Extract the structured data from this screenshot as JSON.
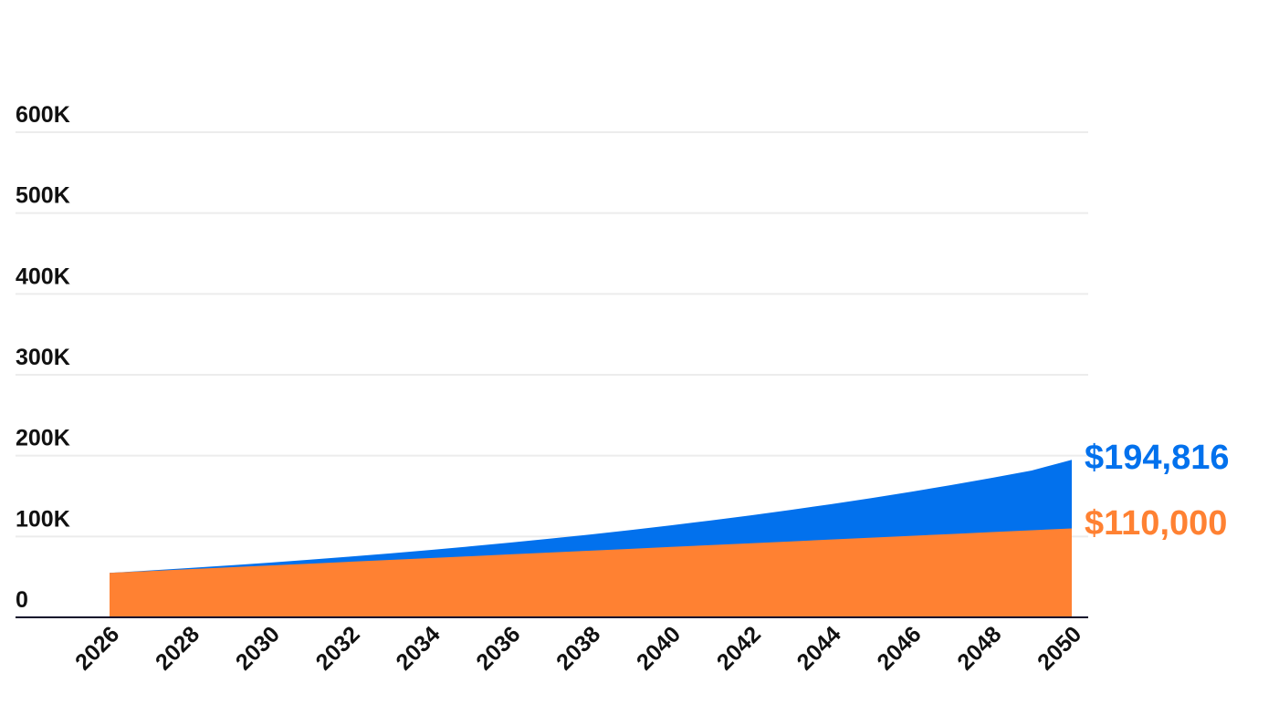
{
  "chart_data": {
    "type": "area",
    "title": "",
    "xlabel": "",
    "ylabel": "",
    "x": [
      2026,
      2027,
      2028,
      2029,
      2030,
      2031,
      2032,
      2033,
      2034,
      2035,
      2036,
      2037,
      2038,
      2039,
      2040,
      2041,
      2042,
      2043,
      2044,
      2045,
      2046,
      2047,
      2048,
      2049,
      2050
    ],
    "x_tick_labels": [
      "2026",
      "2028",
      "2030",
      "2032",
      "2034",
      "2036",
      "2038",
      "2040",
      "2042",
      "2044",
      "2046",
      "2048",
      "2050"
    ],
    "y_tick_labels": [
      "0",
      "100K",
      "200K",
      "300K",
      "400K",
      "500K",
      "600K"
    ],
    "ylim": [
      0,
      600000
    ],
    "grid": true,
    "legend": "none",
    "series": [
      {
        "values": [
          55000,
          57292,
          59583,
          61875,
          64167,
          66458,
          68750,
          71042,
          73333,
          75625,
          77917,
          80208,
          82500,
          84792,
          87083,
          89375,
          91667,
          93958,
          96250,
          98542,
          100833,
          103125,
          105417,
          107708,
          110000
        ],
        "color": "#ff8132"
      },
      {
        "values": [
          55000,
          57932,
          61019,
          64271,
          67697,
          71305,
          75105,
          79108,
          83324,
          87765,
          92443,
          97370,
          102560,
          108026,
          113784,
          119848,
          126236,
          132964,
          140051,
          147515,
          155378,
          163659,
          172382,
          181570,
          194816
        ],
        "color": "#0271ed"
      }
    ],
    "end_labels": [
      {
        "text": "$194,816",
        "color": "#0271ed"
      },
      {
        "text": "$110,000",
        "color": "#ff8132"
      }
    ]
  }
}
